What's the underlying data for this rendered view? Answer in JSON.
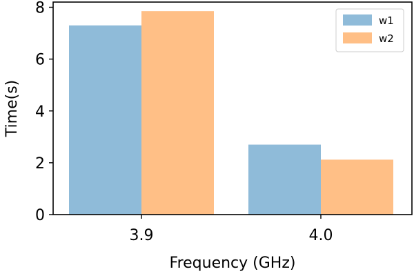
{
  "chart_data": {
    "type": "bar",
    "categories": [
      "3.9",
      "4.0"
    ],
    "series": [
      {
        "name": "w1",
        "values": [
          7.3,
          2.7
        ],
        "color": "#8fbbd9"
      },
      {
        "name": "w2",
        "values": [
          7.85,
          2.12
        ],
        "color": "#ffbf86"
      }
    ],
    "xlabel": "Frequency (GHz)",
    "ylabel": "Time(s)",
    "ylim": [
      0,
      8.2
    ],
    "yticks": [
      0,
      2,
      4,
      6,
      8
    ],
    "grid": false,
    "legend_position": "top-right"
  }
}
